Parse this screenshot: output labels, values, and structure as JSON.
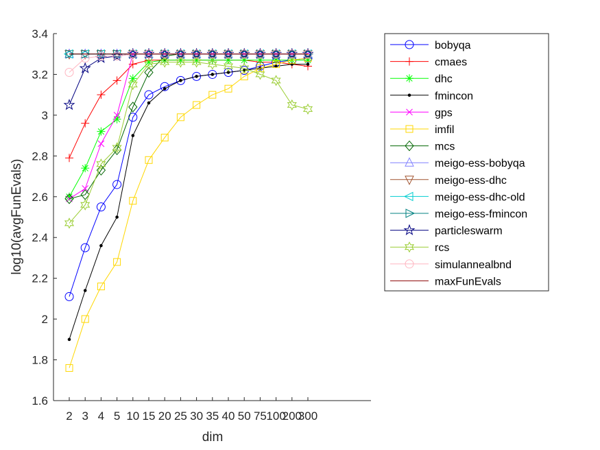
{
  "chart_data": {
    "type": "line",
    "xlabel": "dim",
    "ylabel": "log10(avgFunEvals)",
    "ylim": [
      1.6,
      3.4
    ],
    "yticks": [
      "1.6",
      "1.8",
      "2",
      "2.2",
      "2.4",
      "2.6",
      "2.8",
      "3",
      "3.2",
      "3.4"
    ],
    "categories": [
      "2",
      "3",
      "4",
      "5",
      "10",
      "15",
      "20",
      "25",
      "30",
      "35",
      "40",
      "50",
      "75",
      "100",
      "200",
      "300"
    ],
    "legend_position": "outside-right",
    "grid": false,
    "series": [
      {
        "name": "bobyqa",
        "color": "#0000ff",
        "marker": "circle",
        "values": [
          2.11,
          2.35,
          2.55,
          2.66,
          2.99,
          3.1,
          3.14,
          3.17,
          3.19,
          3.2,
          3.21,
          3.22,
          3.24,
          3.26,
          3.27,
          3.28
        ]
      },
      {
        "name": "cmaes",
        "color": "#ff0000",
        "marker": "plus",
        "values": [
          2.79,
          2.96,
          3.1,
          3.17,
          3.25,
          3.27,
          3.27,
          3.27,
          3.27,
          3.27,
          3.27,
          3.27,
          3.26,
          3.26,
          3.25,
          3.24
        ]
      },
      {
        "name": "dhc",
        "color": "#00ff00",
        "marker": "asterisk",
        "values": [
          2.6,
          2.74,
          2.92,
          2.98,
          3.18,
          3.26,
          3.27,
          3.27,
          3.27,
          3.27,
          3.27,
          3.27,
          3.27,
          3.27,
          3.27,
          3.27
        ]
      },
      {
        "name": "fmincon",
        "color": "#000000",
        "marker": "dot",
        "values": [
          1.9,
          2.14,
          2.36,
          2.5,
          2.9,
          3.06,
          3.13,
          3.17,
          3.19,
          3.2,
          3.21,
          3.22,
          3.23,
          3.24,
          3.25,
          3.25
        ]
      },
      {
        "name": "gps",
        "color": "#ff00ff",
        "marker": "x",
        "values": [
          2.59,
          2.64,
          2.86,
          3.0,
          3.3,
          3.3,
          3.3,
          3.3,
          3.3,
          3.3,
          3.3,
          3.3,
          3.3,
          3.3,
          3.3,
          3.3
        ]
      },
      {
        "name": "imfil",
        "color": "#ffd700",
        "marker": "square",
        "values": [
          1.76,
          2.0,
          2.16,
          2.28,
          2.58,
          2.78,
          2.89,
          2.99,
          3.05,
          3.1,
          3.13,
          3.19,
          3.23,
          3.25,
          3.27,
          3.28
        ]
      },
      {
        "name": "mcs",
        "color": "#006400",
        "marker": "diamond",
        "values": [
          2.59,
          2.61,
          2.73,
          2.83,
          3.04,
          3.21,
          3.29,
          3.3,
          3.3,
          3.3,
          3.3,
          3.3,
          3.3,
          3.3,
          3.3,
          3.3
        ]
      },
      {
        "name": "meigo-ess-bobyqa",
        "color": "#8080ff",
        "marker": "triangle-up",
        "values": [
          3.3,
          3.3,
          3.3,
          3.3,
          3.3,
          3.3,
          3.3,
          3.3,
          3.3,
          3.3,
          3.3,
          3.3,
          3.3,
          3.3,
          3.3,
          3.3
        ]
      },
      {
        "name": "meigo-ess-dhc",
        "color": "#a0522d",
        "marker": "triangle-down",
        "values": [
          3.3,
          3.3,
          3.3,
          3.3,
          3.3,
          3.3,
          3.3,
          3.3,
          3.3,
          3.3,
          3.3,
          3.3,
          3.3,
          3.3,
          3.3,
          3.3
        ]
      },
      {
        "name": "meigo-ess-dhc-old",
        "color": "#00ced1",
        "marker": "triangle-left",
        "values": [
          3.3,
          3.3,
          3.3,
          3.3,
          3.3,
          3.3,
          3.3,
          3.3,
          3.3,
          3.3,
          3.3,
          3.3,
          3.3,
          3.3,
          3.3,
          3.3
        ]
      },
      {
        "name": "meigo-ess-fmincon",
        "color": "#008080",
        "marker": "triangle-right",
        "values": [
          3.3,
          3.3,
          3.3,
          3.3,
          3.3,
          3.3,
          3.3,
          3.3,
          3.3,
          3.3,
          3.3,
          3.3,
          3.3,
          3.3,
          3.3,
          3.3
        ]
      },
      {
        "name": "particleswarm",
        "color": "#000080",
        "marker": "pentagram",
        "values": [
          3.05,
          3.23,
          3.28,
          3.29,
          3.3,
          3.3,
          3.3,
          3.3,
          3.3,
          3.3,
          3.3,
          3.3,
          3.3,
          3.3,
          3.3,
          3.3
        ]
      },
      {
        "name": "rcs",
        "color": "#9acd32",
        "marker": "hexagram",
        "values": [
          2.47,
          2.56,
          2.76,
          2.84,
          3.15,
          3.25,
          3.26,
          3.26,
          3.26,
          3.25,
          3.24,
          3.23,
          3.2,
          3.17,
          3.05,
          3.03
        ]
      },
      {
        "name": "simulannealbnd",
        "color": "#ffb6c1",
        "marker": "circle",
        "values": [
          3.21,
          3.28,
          3.29,
          3.29,
          3.3,
          3.3,
          3.3,
          3.3,
          3.3,
          3.3,
          3.3,
          3.3,
          3.3,
          3.3,
          3.3,
          3.3
        ]
      },
      {
        "name": "maxFunEvals",
        "color": "#8b0000",
        "marker": "none",
        "values": [
          3.3,
          3.3,
          3.3,
          3.3,
          3.3,
          3.3,
          3.3,
          3.3,
          3.3,
          3.3,
          3.3,
          3.3,
          3.3,
          3.3,
          3.3,
          3.3
        ]
      }
    ]
  }
}
